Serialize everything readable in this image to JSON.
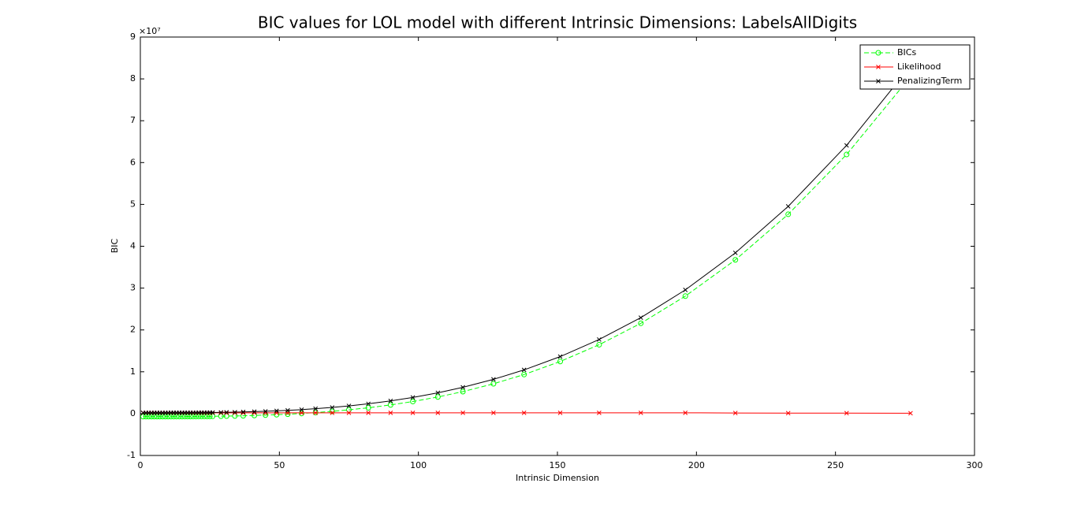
{
  "chart_data": {
    "type": "line",
    "title": "BIC values for LOL model with different Intrinsic Dimensions: LabelsAllDigits",
    "x_label": "Intrinsic Dimension",
    "y_label": "BIC",
    "y_multiplier": "×10⁷",
    "x": [
      1,
      2,
      3,
      4,
      5,
      6,
      7,
      8,
      9,
      10,
      11,
      12,
      13,
      14,
      15,
      16,
      17,
      18,
      19,
      20,
      21,
      22,
      23,
      24,
      25,
      26,
      29,
      31,
      34,
      37,
      41,
      45,
      49,
      53,
      58,
      63,
      69,
      75,
      82,
      90,
      98,
      107,
      116,
      127,
      138,
      151,
      165,
      180,
      196,
      214,
      233,
      254,
      277
    ],
    "series": [
      {
        "name": "BICs",
        "color": "#00ff00",
        "dashed": true,
        "marker": "circle",
        "values": [
          -0.07,
          -0.07,
          -0.07,
          -0.07,
          -0.07,
          -0.07,
          -0.07,
          -0.07,
          -0.07,
          -0.07,
          -0.069,
          -0.069,
          -0.069,
          -0.069,
          -0.069,
          -0.068,
          -0.068,
          -0.068,
          -0.067,
          -0.067,
          -0.066,
          -0.066,
          -0.065,
          -0.065,
          -0.065,
          -0.064,
          -0.061,
          -0.059,
          -0.056,
          -0.051,
          -0.044,
          -0.035,
          -0.025,
          -0.014,
          0.004,
          0.026,
          0.055,
          0.091,
          0.14,
          0.208,
          0.289,
          0.398,
          0.526,
          0.713,
          0.934,
          1.246,
          1.647,
          2.158,
          2.808,
          3.675,
          4.764,
          6.193,
          8.053
        ]
      },
      {
        "name": "Likelihood",
        "color": "#ff0000",
        "dashed": false,
        "marker": "x",
        "values": [
          0.02,
          0.02,
          0.02,
          0.02,
          0.02,
          0.02,
          0.02,
          0.02,
          0.02,
          0.02,
          0.02,
          0.02,
          0.02,
          0.02,
          0.02,
          0.02,
          0.02,
          0.02,
          0.02,
          0.02,
          0.02,
          0.02,
          0.02,
          0.02,
          0.02,
          0.02,
          0.02,
          0.02,
          0.02,
          0.02,
          0.02,
          0.02,
          0.02,
          0.02,
          0.02,
          0.02,
          0.02,
          0.02,
          0.02,
          0.02,
          0.02,
          0.02,
          0.02,
          0.02,
          0.02,
          0.02,
          0.02,
          0.02,
          0.02,
          0.015,
          0.013,
          0.012,
          0.01
        ]
      },
      {
        "name": "PenalizingTerm",
        "color": "#000000",
        "dashed": false,
        "marker": "x",
        "values": [
          0.02,
          0.02,
          0.02,
          0.02,
          0.02,
          0.02,
          0.02,
          0.02,
          0.02,
          0.02,
          0.021,
          0.021,
          0.021,
          0.021,
          0.021,
          0.022,
          0.022,
          0.022,
          0.023,
          0.023,
          0.024,
          0.024,
          0.025,
          0.025,
          0.026,
          0.027,
          0.03,
          0.032,
          0.035,
          0.04,
          0.047,
          0.056,
          0.066,
          0.078,
          0.096,
          0.118,
          0.148,
          0.185,
          0.235,
          0.304,
          0.387,
          0.498,
          0.629,
          0.819,
          1.045,
          1.363,
          1.772,
          2.294,
          2.957,
          3.842,
          4.953,
          6.411,
          8.309
        ]
      }
    ],
    "xlim": [
      0,
      300
    ],
    "xticks": [
      0,
      50,
      100,
      150,
      200,
      250,
      300
    ],
    "ylim": [
      -1,
      9
    ],
    "yticks": [
      -1,
      0,
      1,
      2,
      3,
      4,
      5,
      6,
      7,
      8,
      9
    ],
    "grid": false,
    "legend": "top-right"
  }
}
